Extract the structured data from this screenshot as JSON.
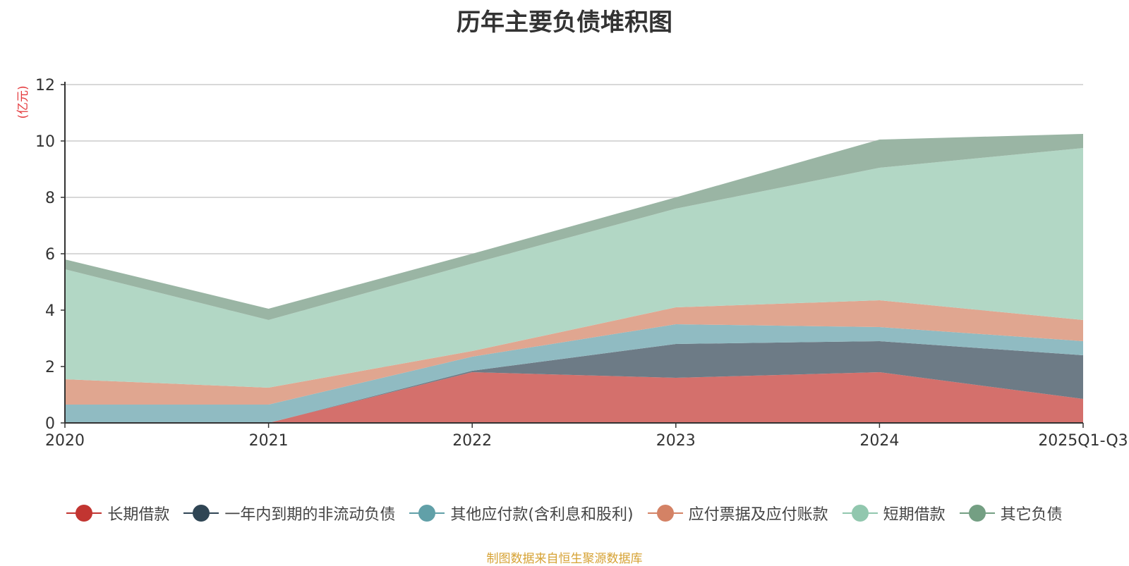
{
  "chart_data": {
    "type": "area",
    "stacked": true,
    "title": "历年主要负债堆积图",
    "ylabel": "(亿元)",
    "xlabel": "",
    "ylim": [
      0,
      12
    ],
    "yticks": [
      "0",
      "2",
      "4",
      "6",
      "8",
      "10",
      "12"
    ],
    "categories": [
      "2020",
      "2021",
      "2022",
      "2023",
      "2024",
      "2025Q1-Q3"
    ],
    "grid": true,
    "legend_position": "bottom",
    "series": [
      {
        "name": "长期借款",
        "color": "#c23531",
        "fill": "#d4706c",
        "values": [
          0,
          0,
          1.8,
          1.6,
          1.8,
          0.85
        ]
      },
      {
        "name": "一年内到期的非流动负债",
        "color": "#2f4554",
        "fill": "#6d7b86",
        "values": [
          0,
          0,
          0.05,
          1.2,
          1.1,
          1.55
        ]
      },
      {
        "name": "其他应付款(含利息和股利)",
        "color": "#61a0a8",
        "fill": "#90bbc2",
        "values": [
          0.65,
          0.65,
          0.5,
          0.7,
          0.5,
          0.5
        ]
      },
      {
        "name": "应付票据及应付账款",
        "color": "#d48265",
        "fill": "#e0a690",
        "values": [
          0.9,
          0.6,
          0.2,
          0.6,
          0.95,
          0.75
        ]
      },
      {
        "name": "短期借款",
        "color": "#91c7ae",
        "fill": "#b2d7c5",
        "values": [
          3.9,
          2.4,
          3.1,
          3.5,
          4.7,
          6.1
        ]
      },
      {
        "name": "其它负债",
        "color": "#749f83",
        "fill": "#9ab5a4",
        "values": [
          0.35,
          0.4,
          0.35,
          0.4,
          1.0,
          0.5
        ]
      }
    ],
    "source_note": "制图数据来自恒生聚源数据库"
  }
}
